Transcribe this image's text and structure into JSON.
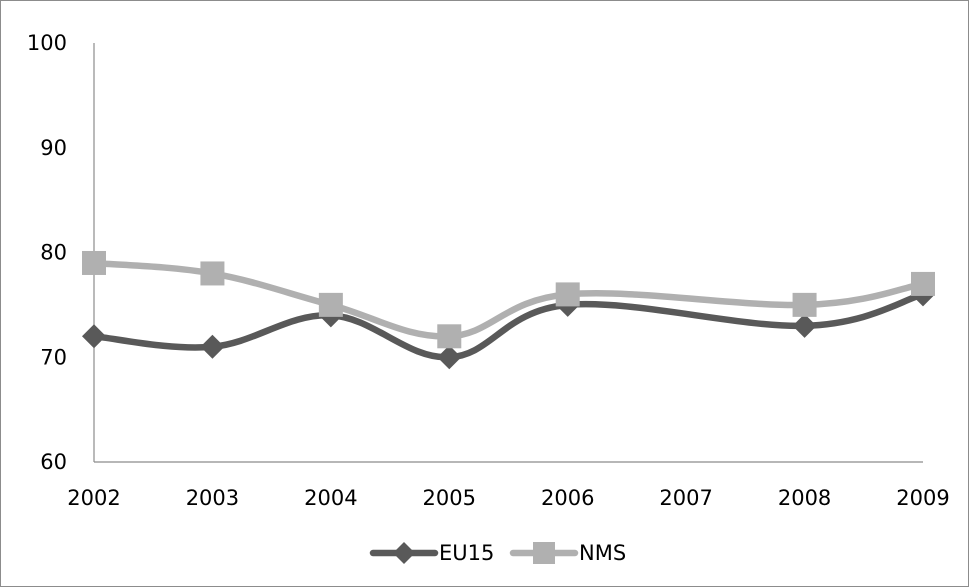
{
  "chart_data": {
    "type": "line",
    "title": "",
    "xlabel": "",
    "ylabel": "",
    "categories": [
      "2002",
      "2003",
      "2004",
      "2005",
      "2006",
      "2007",
      "2008",
      "2009"
    ],
    "ylim": [
      60,
      100
    ],
    "yticks": [
      "60",
      "70",
      "80",
      "90",
      "100"
    ],
    "series": [
      {
        "name": "EU15",
        "values": [
          72,
          71,
          74,
          70,
          75,
          null,
          73,
          76
        ],
        "color": "#595959",
        "marker": "diamond"
      },
      {
        "name": "NMS",
        "values": [
          79,
          78,
          75,
          72,
          76,
          null,
          75,
          77
        ],
        "color": "#b0b0b0",
        "marker": "square"
      }
    ],
    "grid": false,
    "legend": "bottom"
  }
}
